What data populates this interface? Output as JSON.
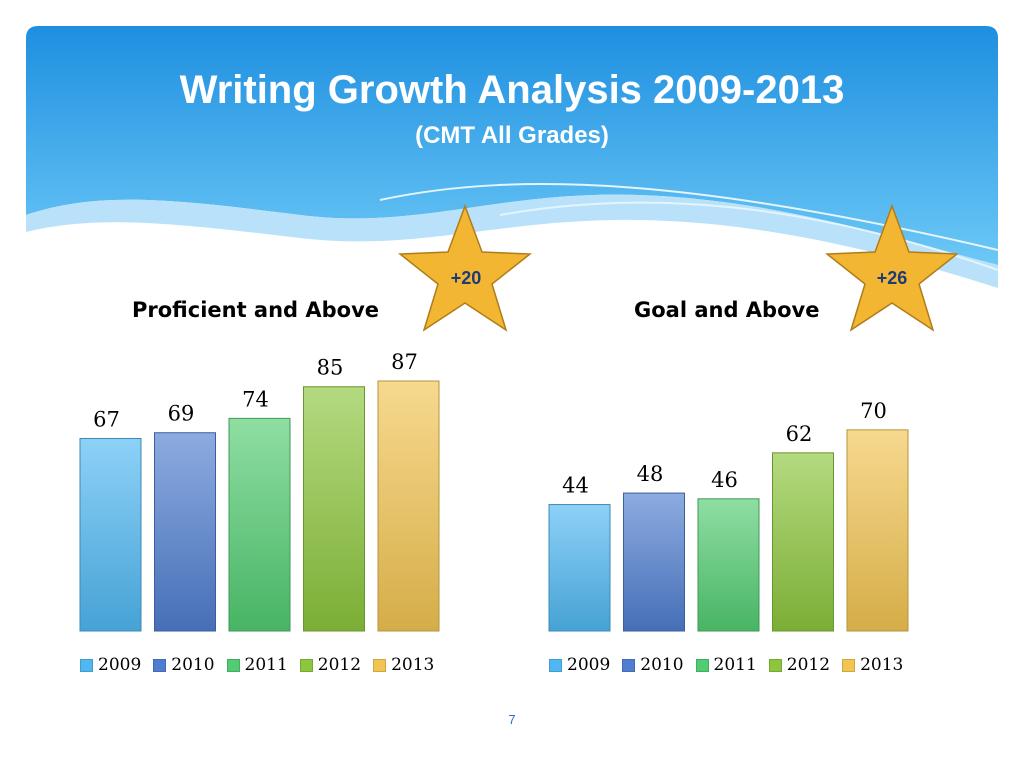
{
  "slide": {
    "title": "Writing Growth Analysis 2009-2013",
    "subtitle": "(CMT All Grades)",
    "page_number": "7"
  },
  "stars": [
    {
      "label": "+20",
      "color": "#f2b632"
    },
    {
      "label": "+26",
      "color": "#f2b632"
    }
  ],
  "colors": {
    "header": "#2a9ae8",
    "2009": "#4fb8f2",
    "2010": "#4f7ed0",
    "2011": "#52cc72",
    "2012": "#8cc63c",
    "2013": "#f2c552"
  },
  "chart_data": [
    {
      "type": "bar",
      "title": "Proficient and Above",
      "categories": [
        "2009",
        "2010",
        "2011",
        "2012",
        "2013"
      ],
      "values": [
        67,
        69,
        74,
        85,
        87
      ],
      "legend": [
        "2009",
        "2010",
        "2011",
        "2012",
        "2013"
      ],
      "legend_position": "bottom",
      "grid": false,
      "ylim": [
        0,
        100
      ]
    },
    {
      "type": "bar",
      "title": "Goal and Above",
      "categories": [
        "2009",
        "2010",
        "2011",
        "2012",
        "2013"
      ],
      "values": [
        44,
        48,
        46,
        62,
        70
      ],
      "legend": [
        "2009",
        "2010",
        "2011",
        "2012",
        "2013"
      ],
      "legend_position": "bottom",
      "grid": false,
      "ylim": [
        0,
        80
      ]
    }
  ]
}
